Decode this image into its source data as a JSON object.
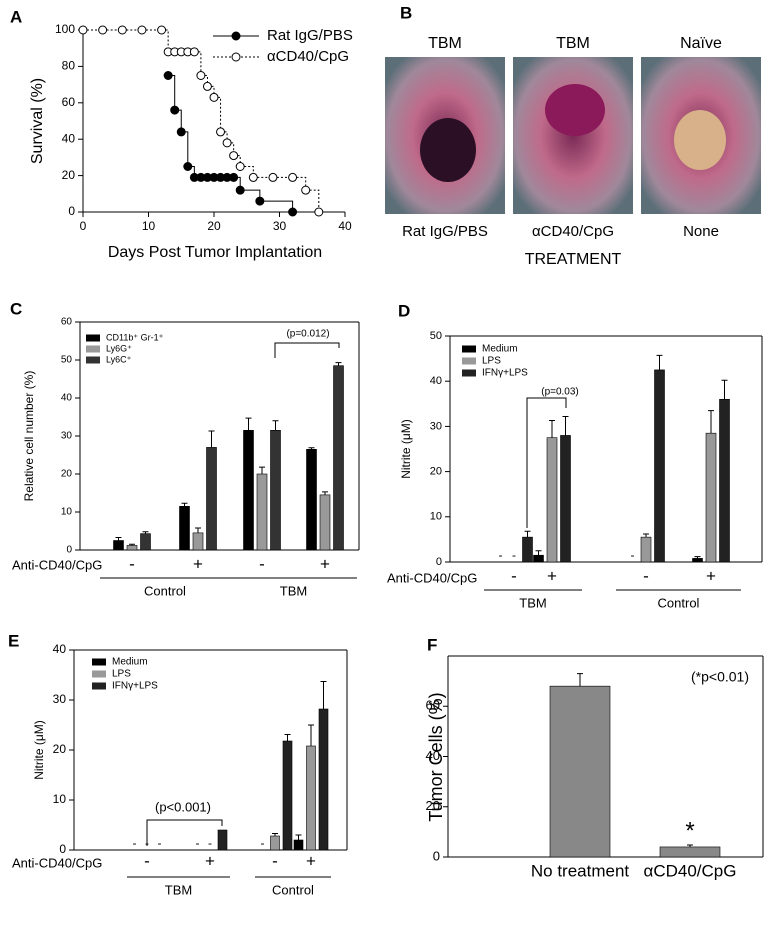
{
  "panel_b": {
    "panel": "B",
    "columns": [
      {
        "title": "TBM",
        "treatment": "Rat IgG/PBS"
      },
      {
        "title": "TBM",
        "treatment": "αCD40/CpG"
      },
      {
        "title": "Naïve",
        "treatment": "None"
      }
    ],
    "xlabel": "TREATMENT"
  },
  "chart_data": [
    {
      "type": "line",
      "panel": "A",
      "step": true,
      "xlabel": "Days Post Tumor Implantation",
      "ylabel": "Survival (%)",
      "xlim": [
        0,
        40
      ],
      "xticks": [
        0,
        10,
        20,
        30,
        40
      ],
      "ylim": [
        0,
        100
      ],
      "yticks": [
        0,
        20,
        40,
        60,
        80,
        100
      ],
      "legend": "upper right",
      "series": [
        {
          "name": "Rat IgG/PBS",
          "color": "#000000",
          "marker_fill": "#000000",
          "dash": "solid",
          "x": [
            13,
            14,
            15,
            16,
            17,
            18,
            19,
            20,
            21,
            22,
            23,
            24,
            27,
            32
          ],
          "values": [
            75,
            56,
            44,
            25,
            19,
            19,
            19,
            19,
            19,
            19,
            19,
            12,
            6,
            0
          ]
        },
        {
          "name": "αCD40/CpG",
          "color": "#000000",
          "marker_fill": "#ffffff",
          "dash": "dotted",
          "x": [
            0,
            3,
            6,
            9,
            12,
            13,
            14,
            15,
            16,
            17,
            18,
            19,
            20,
            21,
            22,
            23,
            24,
            26,
            29,
            32,
            34,
            36
          ],
          "values": [
            100,
            100,
            100,
            100,
            100,
            88,
            88,
            88,
            88,
            88,
            75,
            69,
            63,
            44,
            38,
            31,
            25,
            19,
            19,
            19,
            12,
            0
          ]
        }
      ]
    },
    {
      "type": "bar",
      "panel": "C",
      "ylabel": "Relative cell number (%)",
      "ylim": [
        0,
        60
      ],
      "yticks": [
        0,
        10,
        20,
        30,
        40,
        50,
        60
      ],
      "categories": [
        "-",
        "+",
        "-",
        "+"
      ],
      "row_label": "Anti-CD40/CpG",
      "groups": [
        "Control",
        "TBM"
      ],
      "annotations": [
        {
          "text": "(p=0.012)"
        }
      ],
      "series": [
        {
          "name": "CD11b⁺ Gr-1⁺",
          "color": "#000000",
          "values": [
            2.5,
            11.5,
            31.5,
            26.5
          ],
          "errors": [
            0.8,
            0.8,
            3.2,
            0.4
          ]
        },
        {
          "name": "Ly6G⁺",
          "color": "#999999",
          "values": [
            1.2,
            4.5,
            20,
            14.5
          ],
          "errors": [
            0.3,
            1.3,
            1.8,
            0.8
          ]
        },
        {
          "name": "Ly6C⁺",
          "color": "#333333",
          "values": [
            4.3,
            27,
            31.5,
            48.5
          ],
          "errors": [
            0.5,
            4.3,
            2.5,
            0.8
          ]
        }
      ]
    },
    {
      "type": "bar",
      "panel": "D",
      "ylabel": "Nitrite (μM)",
      "ylim": [
        0,
        50
      ],
      "yticks": [
        0,
        10,
        20,
        30,
        40,
        50
      ],
      "categories": [
        "-",
        "+",
        "-",
        "+"
      ],
      "row_label": "Anti-CD40/CpG",
      "groups": [
        "TBM",
        "Control"
      ],
      "annotations": [
        {
          "text": "(p=0.03)"
        }
      ],
      "series": [
        {
          "name": "Medium",
          "color": "#000000",
          "values": [
            null,
            1.5,
            null,
            0.8
          ],
          "errors": [
            null,
            1,
            null,
            0.4
          ],
          "value_labels": [
            "-",
            null,
            "-",
            null
          ]
        },
        {
          "name": "LPS",
          "color": "#999999",
          "values": [
            null,
            27.5,
            5.5,
            28.5
          ],
          "errors": [
            null,
            3.8,
            0.7,
            5
          ],
          "value_labels": [
            "-",
            null,
            null,
            null
          ]
        },
        {
          "name": "IFNγ+LPS",
          "color": "#222222",
          "values": [
            5.5,
            28,
            42.5,
            36
          ],
          "errors": [
            1.3,
            4.2,
            3.2,
            4.2
          ]
        }
      ]
    },
    {
      "type": "bar",
      "panel": "E",
      "ylabel": "Nitrite (μM)",
      "ylim": [
        0,
        40
      ],
      "yticks": [
        0,
        10,
        20,
        30,
        40
      ],
      "categories": [
        "-",
        "+",
        "-",
        "+"
      ],
      "row_label": "Anti-CD40/CpG",
      "groups": [
        "TBM",
        "Control"
      ],
      "annotations": [
        {
          "text": "(p<0.001)"
        }
      ],
      "series": [
        {
          "name": "Medium",
          "color": "#000000",
          "values": [
            null,
            null,
            null,
            2
          ],
          "errors": [
            null,
            null,
            null,
            1
          ],
          "value_labels": [
            "-",
            "-",
            "-",
            null
          ]
        },
        {
          "name": "LPS",
          "color": "#999999",
          "values": [
            null,
            null,
            2.8,
            20.8
          ],
          "errors": [
            null,
            null,
            0.5,
            4.2
          ],
          "value_labels": [
            "-",
            "-",
            null,
            null
          ]
        },
        {
          "name": "IFNγ+LPS",
          "color": "#222222",
          "values": [
            null,
            4,
            21.8,
            28.2
          ],
          "errors": [
            null,
            null,
            1.3,
            5.5
          ],
          "value_labels": [
            "-",
            null,
            null,
            null
          ]
        }
      ]
    },
    {
      "type": "bar",
      "panel": "F",
      "ylabel": "Tumor Cells (%)",
      "ylim": [
        0,
        80
      ],
      "yticks": [
        0,
        20,
        40,
        60
      ],
      "categories": [
        "No treatment",
        "αCD40/CpG"
      ],
      "annotations": [
        {
          "text": "(*p<0.01)"
        },
        {
          "text": "*"
        }
      ],
      "series": [
        {
          "color": "#888888",
          "values": [
            68,
            4
          ],
          "errors": [
            5,
            0.8
          ]
        }
      ]
    }
  ]
}
